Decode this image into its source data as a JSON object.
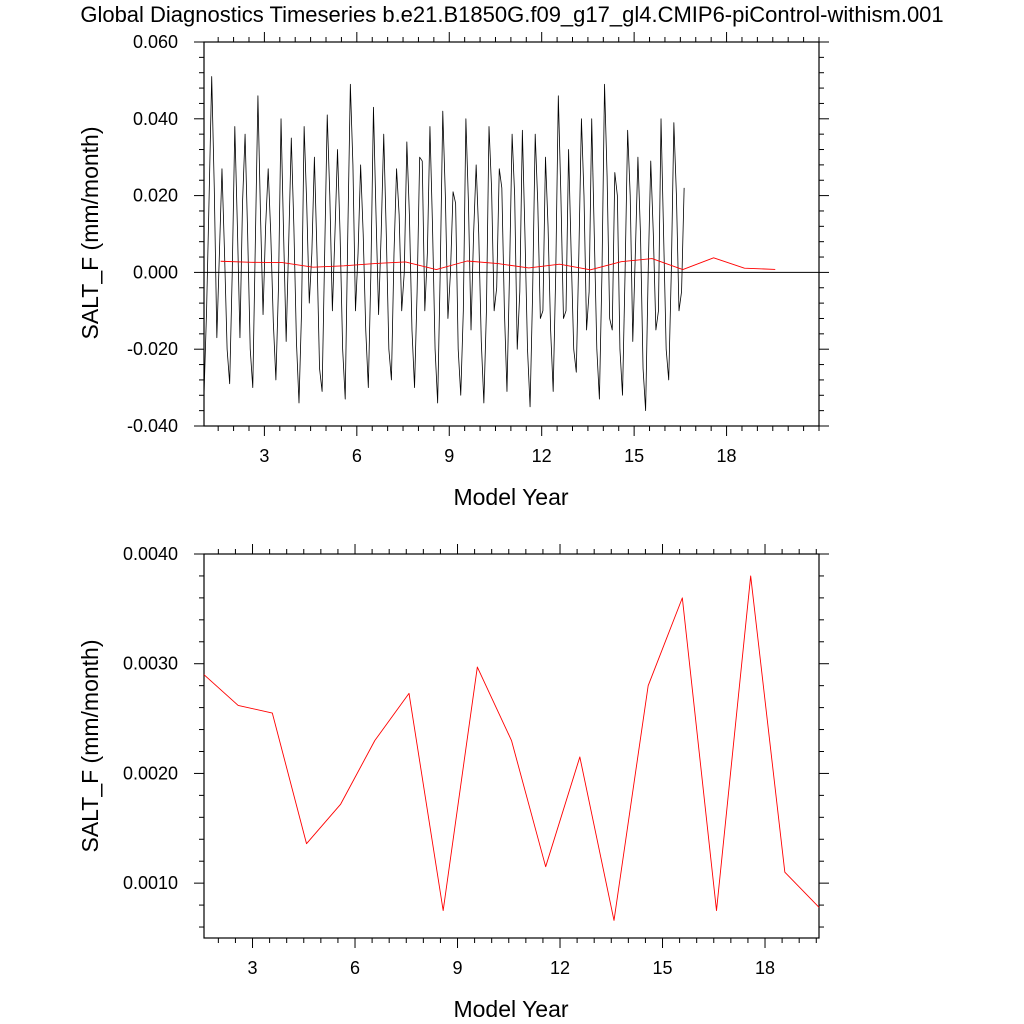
{
  "title": "Global Diagnostics Timeseries b.e21.B1850G.f09_g17_gl4.CMIP6-piControl-withism.001",
  "colors": {
    "monthly": "#000000",
    "annual": "#ff0000",
    "axes": "#000000"
  },
  "chart_data": [
    {
      "type": "line",
      "xlabel": "Model Year",
      "ylabel": "SALT_F (mm/month)",
      "xlim": [
        1.04,
        21.0
      ],
      "ylim": [
        -0.04,
        0.06
      ],
      "xticks": [
        3,
        6,
        9,
        12,
        15,
        18
      ],
      "xtick_labels": [
        "3",
        "6",
        "9",
        "12",
        "15",
        "18"
      ],
      "yticks": [
        -0.04,
        -0.02,
        0.0,
        0.02,
        0.04,
        0.06
      ],
      "ytick_labels": [
        "-0.040",
        "-0.020",
        "0.000",
        "0.020",
        "0.040",
        "0.060"
      ],
      "reference_line_y": 0,
      "series": [
        {
          "style": "monthly",
          "x_start": 1.04,
          "x_step": 0.08333,
          "values": [
            -0.032,
            -0.01,
            0.02,
            0.051,
            0.022,
            -0.017,
            0.005,
            0.027,
            0.005,
            -0.02,
            -0.029,
            0.0,
            0.038,
            0.012,
            -0.017,
            0.018,
            0.036,
            0.01,
            -0.02,
            -0.03,
            0.008,
            0.046,
            0.015,
            -0.011,
            0.012,
            0.027,
            0.01,
            -0.013,
            -0.028,
            -0.004,
            0.04,
            0.01,
            -0.018,
            0.008,
            0.035,
            0.012,
            -0.018,
            -0.034,
            -0.01,
            0.038,
            0.018,
            -0.008,
            0.005,
            0.03,
            0.005,
            -0.025,
            -0.031,
            0.005,
            0.041,
            0.02,
            -0.01,
            0.01,
            0.032,
            0.01,
            -0.02,
            -0.033,
            0.01,
            0.049,
            0.028,
            -0.01,
            0.005,
            0.028,
            0.01,
            -0.015,
            -0.03,
            0.0,
            0.043,
            0.015,
            -0.011,
            0.01,
            0.036,
            0.01,
            -0.02,
            -0.028,
            0.005,
            0.027,
            0.015,
            -0.01,
            0.0,
            0.034,
            0.015,
            -0.015,
            -0.03,
            -0.005,
            0.03,
            0.029,
            -0.01,
            0.005,
            0.038,
            0.012,
            -0.02,
            -0.034,
            0.0,
            0.042,
            0.02,
            -0.012,
            0.0,
            0.021,
            0.018,
            -0.02,
            -0.032,
            -0.01,
            0.04,
            0.018,
            -0.015,
            0.01,
            0.028,
            0.01,
            -0.018,
            -0.034,
            -0.01,
            0.038,
            0.022,
            -0.01,
            -0.004,
            0.027,
            0.022,
            -0.01,
            -0.031,
            0.0,
            0.036,
            0.02,
            -0.02,
            -0.005,
            0.037,
            0.01,
            -0.02,
            -0.035,
            -0.005,
            0.036,
            0.018,
            -0.012,
            -0.01,
            0.03,
            0.012,
            -0.015,
            -0.031,
            0.0,
            0.046,
            0.02,
            -0.012,
            -0.01,
            0.032,
            0.005,
            -0.02,
            -0.026,
            0.005,
            0.04,
            0.02,
            -0.015,
            -0.005,
            0.04,
            0.01,
            -0.02,
            -0.033,
            0.0,
            0.049,
            0.025,
            -0.012,
            -0.015,
            0.026,
            0.02,
            -0.02,
            -0.032,
            0.0,
            0.037,
            0.02,
            -0.018,
            0.005,
            0.03,
            0.01,
            -0.025,
            -0.036,
            0.0,
            0.029,
            0.01,
            -0.015,
            -0.01,
            0.04,
            0.01,
            -0.02,
            -0.028,
            0.0,
            0.039,
            0.02,
            -0.01,
            -0.005,
            0.022
          ]
        },
        {
          "style": "annual",
          "x": [
            1.58,
            2.58,
            3.58,
            4.58,
            5.58,
            6.58,
            7.58,
            8.58,
            9.58,
            10.58,
            11.58,
            12.58,
            13.58,
            14.58,
            15.58,
            16.58,
            17.58,
            18.58,
            19.58
          ],
          "values": [
            0.0029,
            0.00262,
            0.00255,
            0.00136,
            0.00172,
            0.0023,
            0.00273,
            0.00075,
            0.00297,
            0.0023,
            0.00115,
            0.00215,
            0.00066,
            0.0028,
            0.0036,
            0.00075,
            0.0038,
            0.0011,
            0.00078
          ]
        }
      ]
    },
    {
      "type": "line",
      "xlabel": "Model Year",
      "ylabel": "SALT_F (mm/month)",
      "xlim": [
        1.58,
        19.58
      ],
      "ylim": [
        0.0005,
        0.004
      ],
      "xticks": [
        3,
        6,
        9,
        12,
        15,
        18
      ],
      "xtick_labels": [
        "3",
        "6",
        "9",
        "12",
        "15",
        "18"
      ],
      "yticks": [
        0.001,
        0.002,
        0.003,
        0.004
      ],
      "ytick_labels": [
        "0.0010",
        "0.0020",
        "0.0030",
        "0.0040"
      ],
      "series": [
        {
          "style": "annual",
          "x": [
            1.58,
            2.58,
            3.58,
            4.58,
            5.58,
            6.58,
            7.58,
            8.58,
            9.58,
            10.58,
            11.58,
            12.58,
            13.58,
            14.58,
            15.58,
            16.58,
            17.58,
            18.58,
            19.58
          ],
          "values": [
            0.0029,
            0.00262,
            0.00255,
            0.00136,
            0.00172,
            0.0023,
            0.00273,
            0.00075,
            0.00297,
            0.0023,
            0.00115,
            0.00215,
            0.00066,
            0.0028,
            0.0036,
            0.00075,
            0.0038,
            0.0011,
            0.00078
          ]
        }
      ]
    }
  ]
}
